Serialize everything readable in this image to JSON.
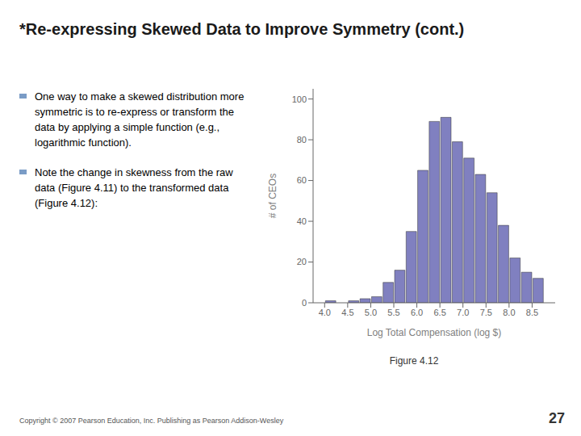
{
  "chart_data": {
    "type": "histogram",
    "title": "*Re-expressing Skewed Data to Improve Symmetry (cont.)",
    "xlabel": "Log Total Compensation (log $)",
    "ylabel": "# of CEOs",
    "bins": [
      3.75,
      4.0,
      4.25,
      4.5,
      4.75,
      5.0,
      5.25,
      5.5,
      5.75,
      6.0,
      6.25,
      6.5,
      6.75,
      7.0,
      7.25,
      7.5,
      7.75,
      8.0,
      8.25,
      8.5,
      8.75
    ],
    "values": [
      0,
      1,
      0,
      1,
      2,
      3,
      10,
      16,
      35,
      65,
      89,
      91,
      79,
      71,
      63,
      54,
      38,
      22,
      15,
      12
    ],
    "color": "#8080c0",
    "xlim": [
      3.75,
      9.0
    ],
    "ylim": [
      0,
      105
    ],
    "xticks": [
      {
        "value": 4,
        "label": "4.0"
      },
      4.5,
      {
        "value": 5,
        "label": "5.0"
      },
      5.5,
      {
        "value": 6,
        "label": "6.0"
      },
      6.5,
      {
        "value": 7,
        "label": "7.0"
      },
      7.5,
      {
        "value": 8,
        "label": "8.0"
      },
      8.5
    ],
    "yticks": [
      0,
      20,
      40,
      60,
      80,
      100
    ],
    "grid": false,
    "annotations": [
      "One way to make a skewed distribution more symmetric is to re-express or transform the data by applying a simple function (e.g., logarithmic function).",
      "Note the change in skewness from the raw data (Figure 4.11) to the transformed data (Figure 4.12):",
      "Figure 4.12",
      "Copyright © 2007 Pearson Education, Inc.  Publishing as Pearson Addison-Wesley",
      "27"
    ]
  }
}
